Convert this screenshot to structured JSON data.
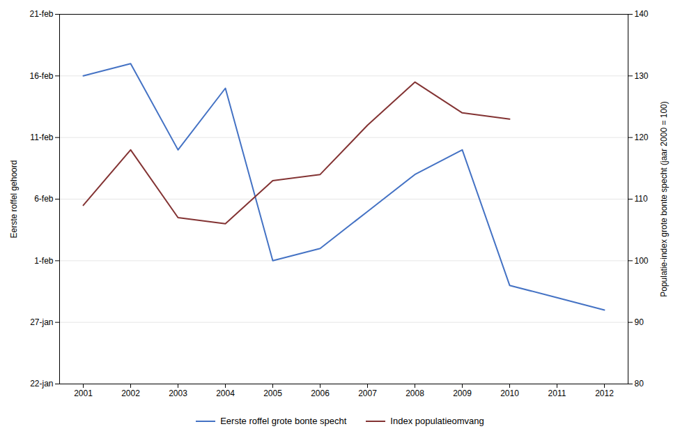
{
  "chart_data": {
    "type": "line",
    "ylabel": "Eerste roffel gehoord",
    "y2label": "Populatie-index grote bonte specht (jaar 2000 = 100)",
    "x": [
      2001,
      2002,
      2003,
      2004,
      2005,
      2006,
      2007,
      2008,
      2009,
      2010,
      2011,
      2012
    ],
    "series": [
      {
        "name": "Eerste roffel grote bonte specht",
        "color": "#4472C4",
        "axis": "y",
        "values": [
          47,
          48,
          41,
          46,
          32,
          33,
          36,
          39,
          41,
          30,
          29,
          28
        ]
      },
      {
        "name": "Index populatieomvang",
        "color": "#833333",
        "axis": "y2",
        "values": [
          109,
          118,
          107,
          106,
          113,
          114,
          122,
          129,
          124,
          123,
          null,
          null
        ]
      }
    ],
    "xlim": [
      2000.5,
      2012.5
    ],
    "xticks": [
      2001,
      2002,
      2003,
      2004,
      2005,
      2006,
      2007,
      2008,
      2009,
      2010,
      2011,
      2012
    ],
    "ylim": [
      22,
      52
    ],
    "yticks": [
      {
        "value": 22,
        "label": "22-jan"
      },
      {
        "value": 27,
        "label": "27-jan"
      },
      {
        "value": 32,
        "label": "1-feb"
      },
      {
        "value": 37,
        "label": "6-feb"
      },
      {
        "value": 42,
        "label": "11-feb"
      },
      {
        "value": 47,
        "label": "16-feb"
      },
      {
        "value": 52,
        "label": "21-feb"
      }
    ],
    "y2lim": [
      80,
      140
    ],
    "y2ticks": [
      80,
      90,
      100,
      110,
      120,
      130,
      140
    ],
    "grid": true,
    "legend": "bottom"
  }
}
